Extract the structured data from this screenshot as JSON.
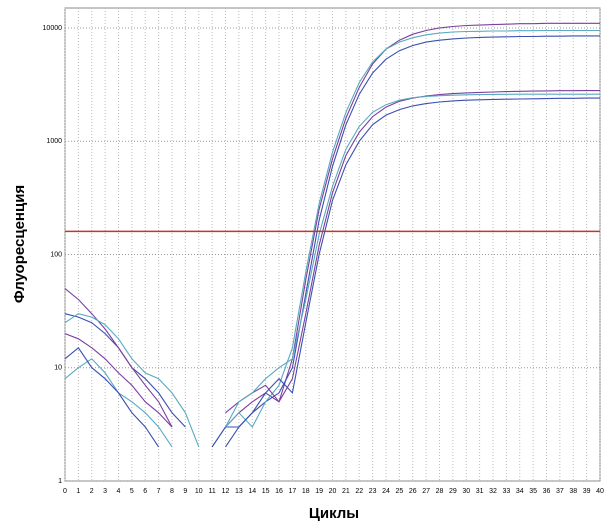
{
  "chart_data": {
    "type": "line",
    "log_scale_y": true,
    "grid": true,
    "x_label": "Циклы",
    "y_label": "Флуоресценция",
    "x": [
      0,
      1,
      2,
      3,
      4,
      5,
      6,
      7,
      8,
      9,
      10,
      11,
      12,
      13,
      14,
      15,
      16,
      17,
      18,
      19,
      20,
      21,
      22,
      23,
      24,
      25,
      26,
      27,
      28,
      29,
      30,
      31,
      32,
      33,
      34,
      35,
      36,
      37,
      38,
      39,
      40
    ],
    "xlim": [
      0,
      40
    ],
    "xticks": [
      0,
      1,
      2,
      3,
      4,
      5,
      6,
      7,
      8,
      9,
      10,
      11,
      12,
      13,
      14,
      15,
      16,
      17,
      18,
      19,
      20,
      21,
      22,
      23,
      24,
      25,
      26,
      27,
      28,
      29,
      30,
      31,
      32,
      33,
      34,
      35,
      36,
      37,
      38,
      39,
      40
    ],
    "ylim": [
      1,
      15000
    ],
    "yticks": [
      1,
      10,
      100,
      1000,
      10000
    ],
    "threshold": 160,
    "threshold_color": "#c0392b",
    "series": [
      {
        "color": "#7b3f9e",
        "values": [
          20,
          18,
          15,
          12,
          9,
          7,
          5,
          4,
          3,
          null,
          null,
          null,
          3,
          4,
          5,
          6,
          5,
          12,
          60,
          250,
          700,
          1600,
          3000,
          4800,
          6500,
          7800,
          8800,
          9500,
          10000,
          10300,
          10500,
          10600,
          10700,
          10800,
          10900,
          10900,
          11000,
          11000,
          11000,
          11000,
          11000
        ]
      },
      {
        "color": "#3a4fb0",
        "values": [
          30,
          28,
          25,
          20,
          15,
          10,
          8,
          6,
          4,
          3,
          null,
          null,
          2,
          3,
          4,
          5,
          6,
          10,
          45,
          200,
          600,
          1400,
          2600,
          4000,
          5300,
          6300,
          7000,
          7500,
          7800,
          8000,
          8150,
          8250,
          8300,
          8350,
          8400,
          8400,
          8450,
          8450,
          8500,
          8500,
          8500
        ]
      },
      {
        "color": "#5aa9c0",
        "values": [
          8,
          10,
          12,
          9,
          6,
          5,
          4,
          3,
          2,
          null,
          null,
          2,
          3,
          4,
          3,
          5,
          7,
          15,
          70,
          280,
          800,
          1800,
          3300,
          5000,
          6500,
          7500,
          8200,
          8700,
          9000,
          9200,
          9300,
          9350,
          9400,
          9400,
          9450,
          9450,
          9500,
          9500,
          9500,
          9500,
          9500
        ]
      },
      {
        "color": "#7b3f9e",
        "values": [
          50,
          40,
          30,
          22,
          15,
          10,
          7,
          5,
          3,
          null,
          null,
          null,
          4,
          5,
          6,
          7,
          5,
          8,
          30,
          120,
          350,
          750,
          1200,
          1650,
          2000,
          2250,
          2400,
          2500,
          2580,
          2630,
          2670,
          2700,
          2720,
          2740,
          2760,
          2770,
          2780,
          2790,
          2790,
          2800,
          2800
        ]
      },
      {
        "color": "#3a4fb0",
        "values": [
          12,
          15,
          10,
          8,
          6,
          4,
          3,
          2,
          null,
          null,
          null,
          2,
          3,
          3,
          4,
          6,
          8,
          6,
          25,
          100,
          300,
          620,
          1000,
          1400,
          1700,
          1900,
          2050,
          2150,
          2220,
          2270,
          2300,
          2320,
          2340,
          2350,
          2360,
          2370,
          2380,
          2390,
          2390,
          2400,
          2400
        ]
      },
      {
        "color": "#5aa9c0",
        "values": [
          25,
          30,
          28,
          24,
          18,
          12,
          9,
          8,
          6,
          4,
          2,
          null,
          3,
          5,
          6,
          8,
          10,
          12,
          40,
          150,
          400,
          850,
          1350,
          1800,
          2100,
          2300,
          2420,
          2480,
          2520,
          2550,
          2570,
          2580,
          2590,
          2595,
          2600,
          2600,
          2600,
          2600,
          2600,
          2600,
          2600
        ]
      }
    ]
  }
}
